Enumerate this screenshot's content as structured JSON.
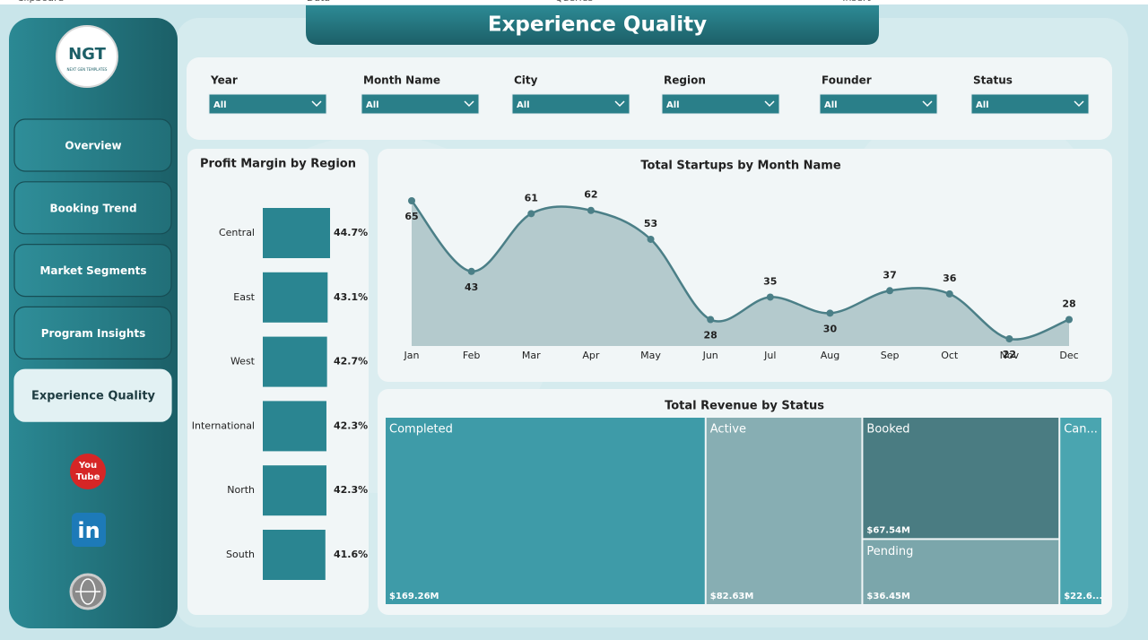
{
  "ribbon": [
    "Clipboard",
    "Data",
    "Queries",
    "Insert"
  ],
  "header": {
    "title": "Experience Quality"
  },
  "logo": {
    "mark": "NGT",
    "caption": "NEXT GEN TEMPLATES"
  },
  "nav": [
    "Overview",
    "Booking Trend",
    "Market Segments",
    "Program Insights",
    "Experience Quality"
  ],
  "active_nav": 4,
  "social": {
    "youtube": [
      "You",
      "Tube"
    ],
    "linkedin": "in"
  },
  "filters": [
    {
      "label": "Year",
      "value": "All"
    },
    {
      "label": "Month Name",
      "value": "All"
    },
    {
      "label": "City",
      "value": "All"
    },
    {
      "label": "Region",
      "value": "All"
    },
    {
      "label": "Founder",
      "value": "All"
    },
    {
      "label": "Status",
      "value": "All"
    }
  ],
  "chart_data": [
    {
      "type": "hbar",
      "title": "Profit Margin by Region",
      "categories": [
        "Central",
        "East",
        "West",
        "International",
        "North",
        "South"
      ],
      "values": [
        44.7,
        43.1,
        42.7,
        42.3,
        42.3,
        41.6
      ],
      "value_labels": [
        "44.7%",
        "43.1%",
        "42.7%",
        "42.3%",
        "42.3%",
        "41.6%"
      ],
      "color": "#2a8591"
    },
    {
      "type": "area",
      "title": "Total Startups by Month Name",
      "categories": [
        "Jan",
        "Feb",
        "Mar",
        "Apr",
        "May",
        "Jun",
        "Jul",
        "Aug",
        "Sep",
        "Oct",
        "Nov",
        "Dec"
      ],
      "values": [
        65,
        43,
        61,
        62,
        53,
        28,
        35,
        30,
        37,
        36,
        22,
        28
      ],
      "color": "#4b7f87",
      "fill": "#a9c2c5"
    },
    {
      "type": "treemap",
      "title": "Total Revenue by Status",
      "categories": [
        "Completed",
        "Active",
        "Booked",
        "Pending",
        "Can..."
      ],
      "values": [
        169.26,
        82.63,
        67.54,
        36.45,
        22.6
      ],
      "value_labels": [
        "$169.26M",
        "$82.63M",
        "$67.54M",
        "$36.45M",
        "$22.6..."
      ],
      "colors": [
        "#3e9ba8",
        "#87aeb3",
        "#4a7c82",
        "#7ba6ab",
        "#4aa5b0"
      ]
    }
  ]
}
